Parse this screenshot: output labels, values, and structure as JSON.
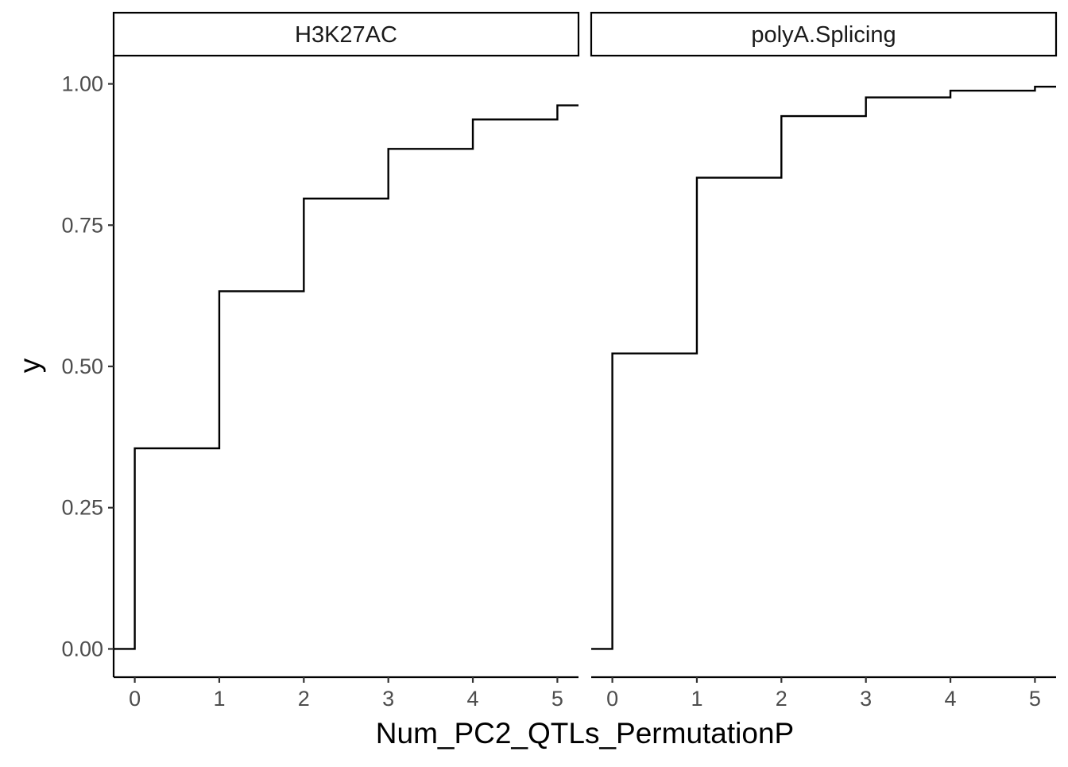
{
  "chart_data": {
    "type": "line",
    "geom": "step",
    "xlabel": "Num_PC2_QTLs_PermutationP",
    "ylabel": "y",
    "xlim": [
      -0.25,
      5.25
    ],
    "ylim": [
      -0.05,
      1.05
    ],
    "x_ticks": [
      0,
      1,
      2,
      3,
      4,
      5
    ],
    "x_tick_labels": [
      "0",
      "1",
      "2",
      "3",
      "4",
      "5"
    ],
    "y_ticks": [
      0,
      0.25,
      0.5,
      0.75,
      1.0
    ],
    "y_tick_labels": [
      "0.00",
      "0.25",
      "0.50",
      "0.75",
      "1.00"
    ],
    "grid": false,
    "facets": [
      {
        "label": "H3K27AC",
        "x": [
          0,
          1,
          2,
          3,
          4,
          5
        ],
        "y": [
          0.355,
          0.633,
          0.797,
          0.885,
          0.937,
          0.962
        ]
      },
      {
        "label": "polyA.Splicing",
        "x": [
          0,
          1,
          2,
          3,
          4,
          5
        ],
        "y": [
          0.523,
          0.834,
          0.943,
          0.976,
          0.988,
          0.995
        ]
      }
    ]
  }
}
